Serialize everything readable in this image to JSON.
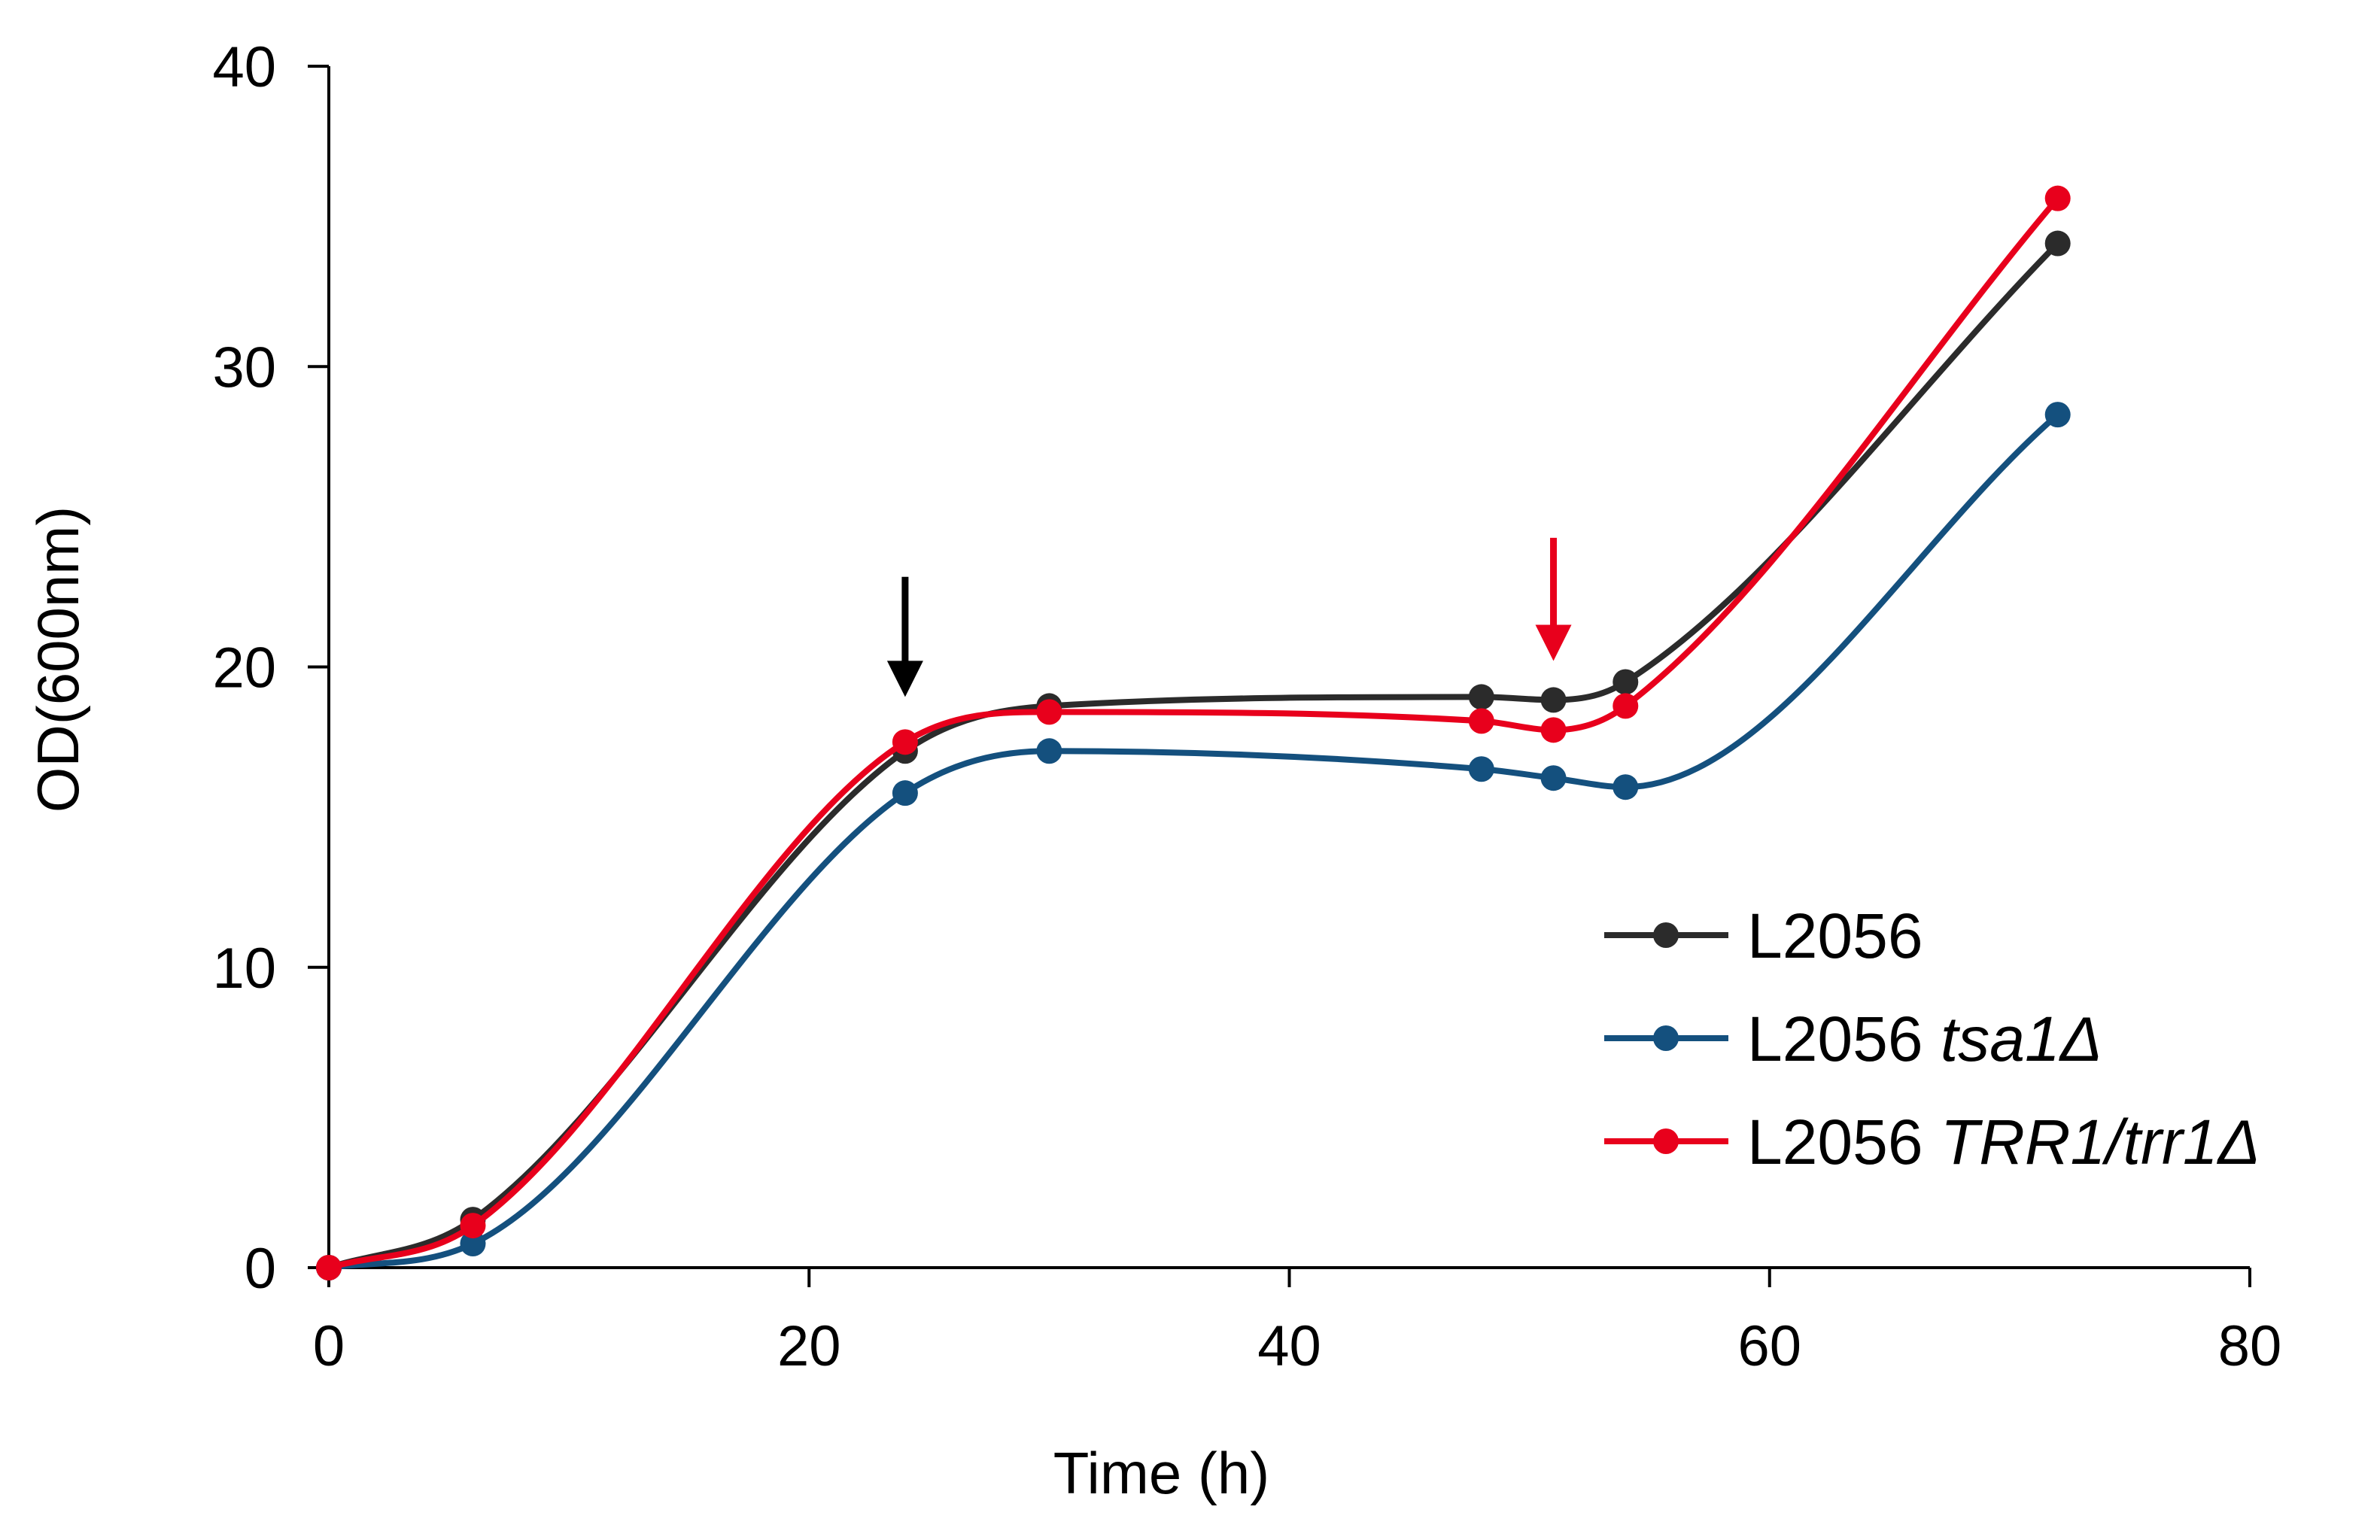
{
  "chart_data": {
    "type": "line",
    "title": "",
    "xlabel": "Time (h)",
    "ylabel": "OD(600nm)",
    "xlim": [
      0,
      80
    ],
    "ylim": [
      0,
      40
    ],
    "xticks": [
      0,
      20,
      40,
      60,
      80
    ],
    "yticks": [
      0,
      10,
      20,
      30,
      40
    ],
    "x_tick_labels": [
      "0",
      "20",
      "40",
      "60",
      "80"
    ],
    "y_tick_labels": [
      "0",
      "10",
      "20",
      "30",
      "40"
    ],
    "grid": false,
    "legend_position": "right",
    "x": [
      0,
      6,
      24,
      30,
      48,
      51,
      54,
      72
    ],
    "series": [
      {
        "name": "L2056",
        "legend_plain": "L2056",
        "legend_italic": "",
        "color": "#2b2b2b",
        "values": [
          0.0,
          1.6,
          17.2,
          18.7,
          19.0,
          18.9,
          19.5,
          34.1
        ]
      },
      {
        "name": "L2056 tsa1Δ",
        "legend_plain": "L2056 ",
        "legend_italic": "tsa1Δ",
        "color": "#14507e",
        "values": [
          0.0,
          0.8,
          15.8,
          17.2,
          16.6,
          16.3,
          16.0,
          28.4
        ]
      },
      {
        "name": "L2056 TRR1/trr1Δ",
        "legend_plain": "L2056 ",
        "legend_italic": "TRR1/trr1Δ",
        "color": "#e8001c",
        "values": [
          0.0,
          1.4,
          17.5,
          18.5,
          18.2,
          17.9,
          18.7,
          35.6
        ]
      }
    ],
    "annotations": [
      {
        "type": "arrow",
        "x": 24,
        "y_from": 23,
        "y_to": 19.0,
        "color": "#000000"
      },
      {
        "type": "arrow",
        "x": 51,
        "y_from": 24.3,
        "y_to": 20.2,
        "color": "#e8001c"
      }
    ]
  }
}
